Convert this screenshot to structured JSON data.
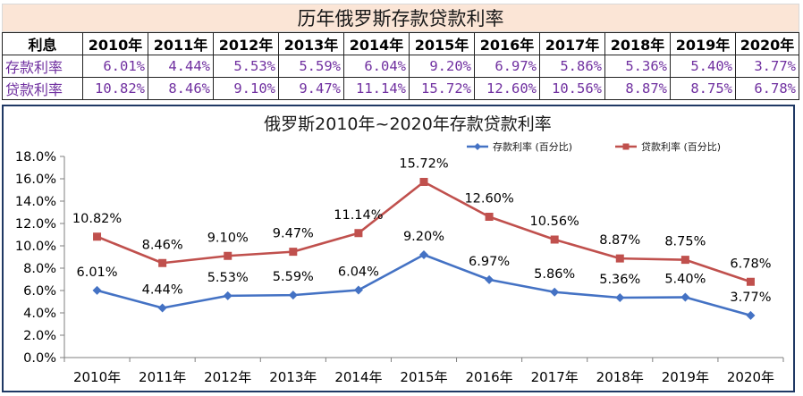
{
  "table": {
    "title": "历年俄罗斯存款贷款利率",
    "corner_label": "利息",
    "years": [
      "2010年",
      "2011年",
      "2012年",
      "2013年",
      "2014年",
      "2015年",
      "2016年",
      "2017年",
      "2018年",
      "2019年",
      "2020年"
    ],
    "rows": [
      {
        "label": "存款利率",
        "values": [
          "6.01%",
          "4.44%",
          "5.53%",
          "5.59%",
          "6.04%",
          "9.20%",
          "6.97%",
          "5.86%",
          "5.36%",
          "5.40%",
          "3.77%"
        ]
      },
      {
        "label": "贷款利率",
        "values": [
          "10.82%",
          "8.46%",
          "9.10%",
          "9.47%",
          "11.14%",
          "15.72%",
          "12.60%",
          "10.56%",
          "8.87%",
          "8.75%",
          "6.78%"
        ]
      }
    ]
  },
  "chart_data": {
    "type": "line",
    "title": "俄罗斯2010年~2020年存款贷款利率",
    "categories": [
      "2010年",
      "2011年",
      "2012年",
      "2013年",
      "2014年",
      "2015年",
      "2016年",
      "2017年",
      "2018年",
      "2019年",
      "2020年"
    ],
    "ylim": [
      0,
      18
    ],
    "yticks": [
      0,
      2,
      4,
      6,
      8,
      10,
      12,
      14,
      16,
      18
    ],
    "ytick_labels": [
      "0.0%",
      "2.0%",
      "4.0%",
      "6.0%",
      "8.0%",
      "10.0%",
      "12.0%",
      "14.0%",
      "16.0%",
      "18.0%"
    ],
    "legend_position": "top-right",
    "grid": false,
    "series": [
      {
        "name": "存款利率 (百分比)",
        "color": "#4472c4",
        "marker": "diamond",
        "values": [
          6.01,
          4.44,
          5.53,
          5.59,
          6.04,
          9.2,
          6.97,
          5.86,
          5.36,
          5.4,
          3.77
        ],
        "labels": [
          "6.01%",
          "4.44%",
          "5.53%",
          "5.59%",
          "6.04%",
          "9.20%",
          "6.97%",
          "5.86%",
          "5.36%",
          "5.40%",
          "3.77%"
        ]
      },
      {
        "name": "贷款利率 (百分比)",
        "color": "#c0504d",
        "marker": "square",
        "values": [
          10.82,
          8.46,
          9.1,
          9.47,
          11.14,
          15.72,
          12.6,
          10.56,
          8.87,
          8.75,
          6.78
        ],
        "labels": [
          "10.82%",
          "8.46%",
          "9.10%",
          "9.47%",
          "11.14%",
          "15.72%",
          "12.60%",
          "10.56%",
          "8.87%",
          "8.75%",
          "6.78%"
        ]
      }
    ]
  }
}
